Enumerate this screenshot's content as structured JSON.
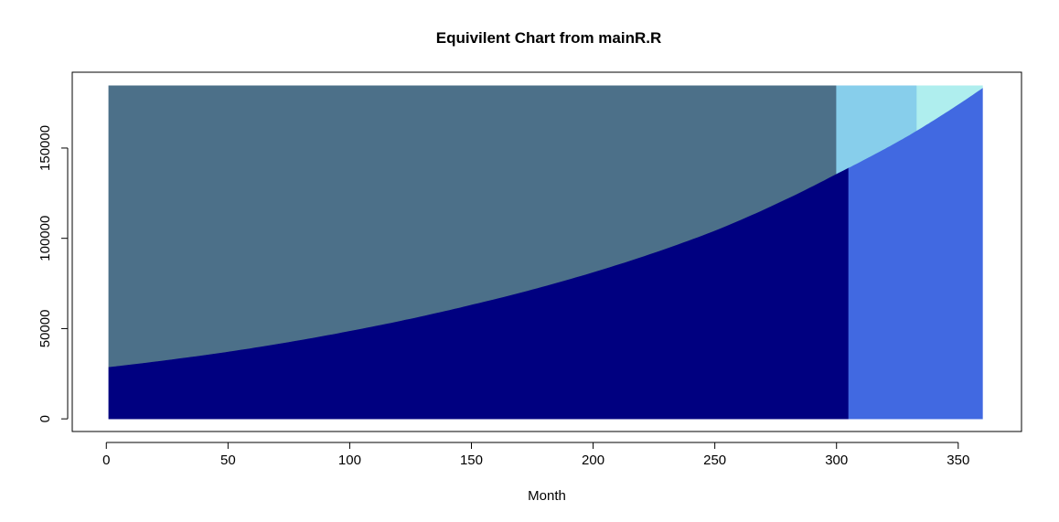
{
  "chart_data": {
    "type": "area",
    "title": "Equivilent Chart from mainR.R",
    "xlabel": "Month",
    "ylabel": "",
    "xlim": [
      -14,
      376
    ],
    "ylim": [
      -7000,
      192000
    ],
    "x_ticks": [
      0,
      50,
      100,
      150,
      200,
      250,
      300,
      350
    ],
    "y_ticks": [
      0,
      50000,
      100000,
      150000
    ],
    "y_tick_labels": [
      "0",
      "50000",
      "100000",
      "150000"
    ],
    "boundary_curve": {
      "x": [
        1,
        50,
        100,
        150,
        200,
        250,
        300,
        330,
        360
      ],
      "y": [
        28500,
        37000,
        48500,
        63000,
        81000,
        104000,
        135500,
        157000,
        183000
      ]
    },
    "regions": [
      {
        "color": "#4C7089",
        "description": "upper left region, x 1-300, from curve to 184500"
      },
      {
        "color": "#000080",
        "description": "lower left region, x 1-305, from 0 to curve"
      },
      {
        "color": "#87CEEB",
        "description": "upper middle region, x 300-333, from curve to 184500"
      },
      {
        "color": "#AFEEEE",
        "description": "upper right region, x 333-360, from curve to 184500"
      },
      {
        "color": "#4169E1",
        "description": "lower right region, x 305-360, from 0 to curve"
      }
    ],
    "top_value": 184500,
    "x_start": 1,
    "x_end": 360,
    "x_split_upper": 300,
    "x_split_lower": 305,
    "x_split_light": 333,
    "grid": false,
    "legend": "none"
  }
}
